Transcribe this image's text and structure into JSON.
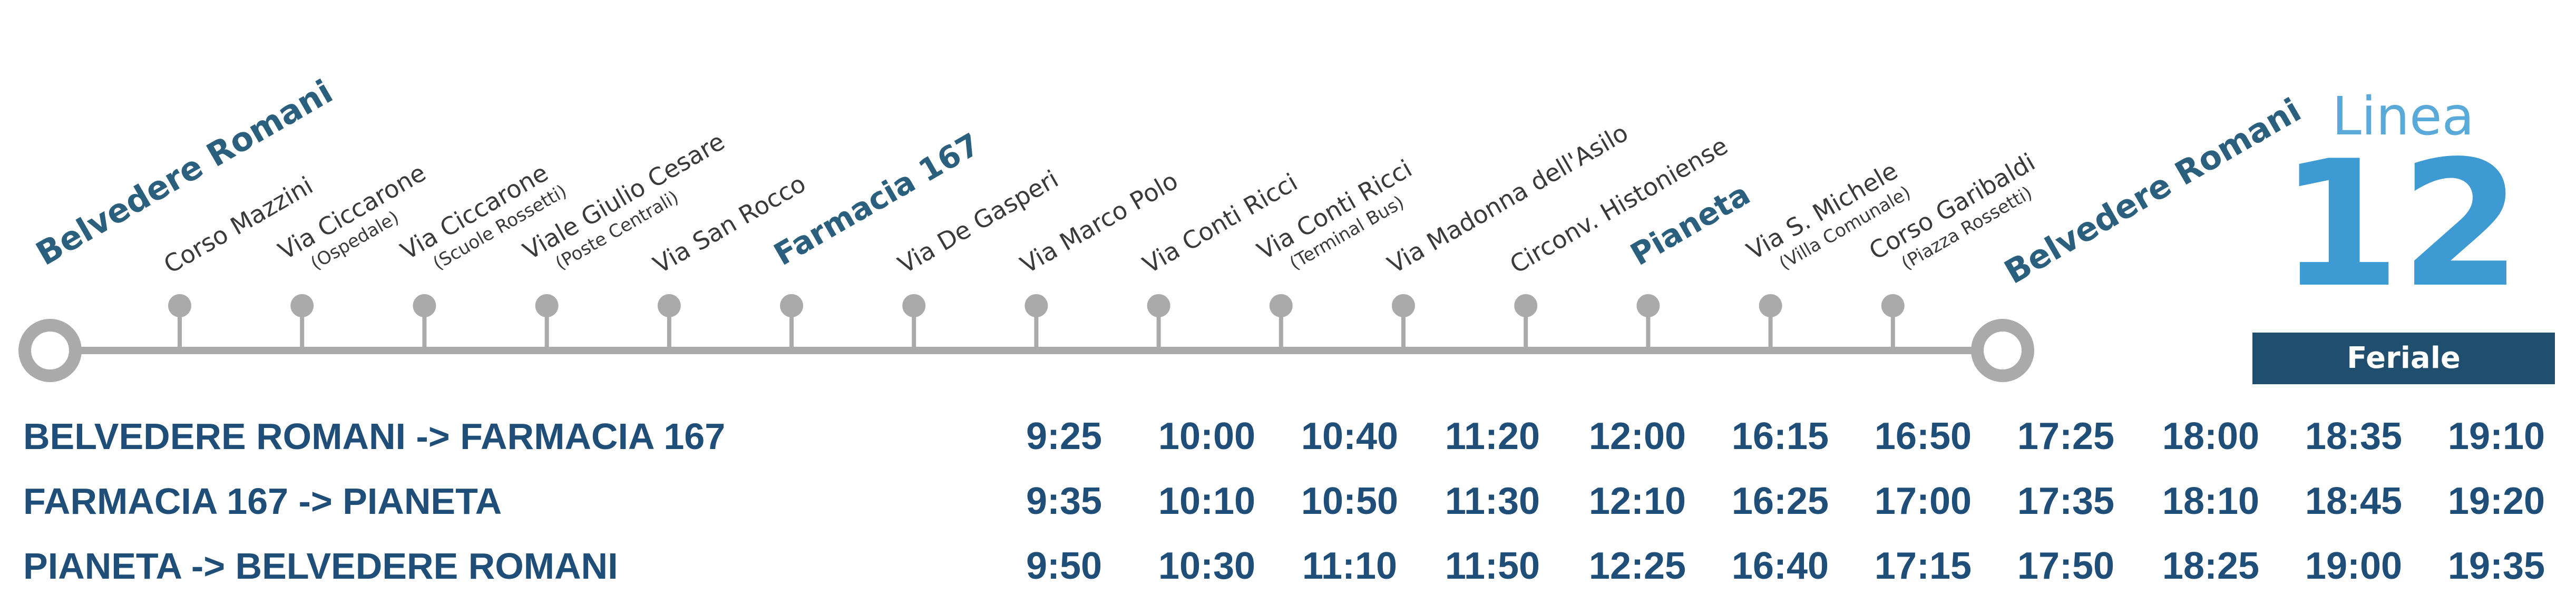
{
  "terminal_start": "Belvedere Romani",
  "terminal_end": "Belvedere Romani",
  "stops": [
    {
      "name": "Corso Mazzini"
    },
    {
      "name": "Via Ciccarone",
      "sub": "(Ospedale)"
    },
    {
      "name": "Via Ciccarone",
      "sub": "(Scuole Rossetti)"
    },
    {
      "name": "Viale Giulio Cesare",
      "sub": "(Poste Centrali)"
    },
    {
      "name": "Via San Rocco"
    },
    {
      "name": "Farmacia 167"
    },
    {
      "name": "Via De Gasperi"
    },
    {
      "name": "Via Marco Polo"
    },
    {
      "name": "Via Conti Ricci"
    },
    {
      "name": "Via Conti Ricci",
      "sub": "(Terminal Bus)"
    },
    {
      "name": "Via Madonna dell'Asilo"
    },
    {
      "name": "Circonv. Histoniense"
    },
    {
      "name": "Pianeta"
    },
    {
      "name": "Via S. Michele",
      "sub": "(Villa Comunale)"
    },
    {
      "name": "Corso Garibaldi",
      "sub": "(Piazza Rossetti)"
    }
  ],
  "line_label": "Linea",
  "line_number": "12",
  "day_type": "Feriale",
  "rows": [
    {
      "route": "BELVEDERE ROMANI -> FARMACIA 167",
      "times": [
        "9:25",
        "10:00",
        "10:40",
        "11:20",
        "12:00",
        "16:15",
        "16:50",
        "17:25",
        "18:00",
        "18:35",
        "19:10"
      ]
    },
    {
      "route": "FARMACIA 167 -> PIANETA",
      "times": [
        "9:35",
        "10:10",
        "10:50",
        "11:30",
        "12:10",
        "16:25",
        "17:00",
        "17:35",
        "18:10",
        "18:45",
        "19:20"
      ]
    },
    {
      "route": "PIANETA -> BELVEDERE ROMANI",
      "times": [
        "9:50",
        "10:30",
        "11:10",
        "11:50",
        "12:25",
        "16:40",
        "17:15",
        "17:50",
        "18:25",
        "19:00",
        "19:35"
      ]
    }
  ]
}
